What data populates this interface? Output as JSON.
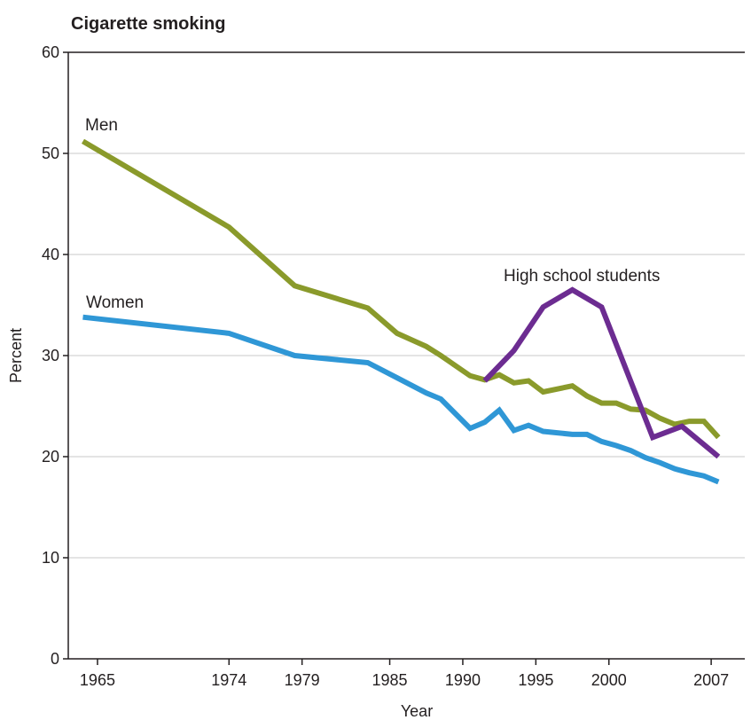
{
  "chart_data": {
    "type": "line",
    "title": "Cigarette smoking",
    "xlabel": "Year",
    "ylabel": "Percent",
    "xlim": [
      1963,
      2009.3
    ],
    "ylim": [
      0,
      60
    ],
    "x_ticks": [
      1965,
      1974,
      1979,
      1985,
      1990,
      1995,
      2000,
      2007
    ],
    "y_ticks": [
      0,
      10,
      20,
      30,
      40,
      50,
      60
    ],
    "grid": true,
    "legend": "none (series labeled directly on plot)",
    "series": [
      {
        "name": "Men",
        "color": "#8a9a2b",
        "points": [
          [
            1964,
            51.2
          ],
          [
            1974,
            42.7
          ],
          [
            1978.5,
            36.9
          ],
          [
            1983.5,
            34.7
          ],
          [
            1985.5,
            32.2
          ],
          [
            1987.5,
            30.9
          ],
          [
            1988.5,
            30.0
          ],
          [
            1990.5,
            28.0
          ],
          [
            1991.5,
            27.6
          ],
          [
            1992.5,
            28.1
          ],
          [
            1993.5,
            27.3
          ],
          [
            1994.5,
            27.5
          ],
          [
            1995.5,
            26.4
          ],
          [
            1997.5,
            27.0
          ],
          [
            1998.5,
            26.0
          ],
          [
            1999.5,
            25.3
          ],
          [
            2000.5,
            25.3
          ],
          [
            2001.5,
            24.7
          ],
          [
            2002.5,
            24.6
          ],
          [
            2003.5,
            23.8
          ],
          [
            2004.5,
            23.2
          ],
          [
            2005.5,
            23.5
          ],
          [
            2006.5,
            23.5
          ],
          [
            2007.5,
            21.9
          ]
        ]
      },
      {
        "name": "Women",
        "color": "#2f97d6",
        "points": [
          [
            1964,
            33.8
          ],
          [
            1974,
            32.2
          ],
          [
            1978.5,
            30.0
          ],
          [
            1983.5,
            29.3
          ],
          [
            1985.5,
            27.8
          ],
          [
            1987.5,
            26.3
          ],
          [
            1988.5,
            25.7
          ],
          [
            1990.5,
            22.8
          ],
          [
            1991.5,
            23.4
          ],
          [
            1992.5,
            24.6
          ],
          [
            1993.5,
            22.6
          ],
          [
            1994.5,
            23.1
          ],
          [
            1995.5,
            22.5
          ],
          [
            1997.5,
            22.2
          ],
          [
            1998.5,
            22.2
          ],
          [
            1999.5,
            21.5
          ],
          [
            2000.5,
            21.1
          ],
          [
            2001.5,
            20.6
          ],
          [
            2002.5,
            19.9
          ],
          [
            2003.5,
            19.4
          ],
          [
            2004.5,
            18.8
          ],
          [
            2005.5,
            18.4
          ],
          [
            2006.5,
            18.1
          ],
          [
            2007.5,
            17.5
          ]
        ]
      },
      {
        "name": "High school students",
        "color": "#6c2c91",
        "points": [
          [
            1991.5,
            27.5
          ],
          [
            1993.5,
            30.5
          ],
          [
            1995.5,
            34.8
          ],
          [
            1997.5,
            36.5
          ],
          [
            1999.5,
            34.8
          ],
          [
            2003,
            21.9
          ],
          [
            2005,
            23.0
          ],
          [
            2007.5,
            20.0
          ]
        ]
      }
    ],
    "series_label_positions": {
      "Men": "upper left, above line",
      "Women": "upper left, above line",
      "High school students": "above peak"
    }
  }
}
